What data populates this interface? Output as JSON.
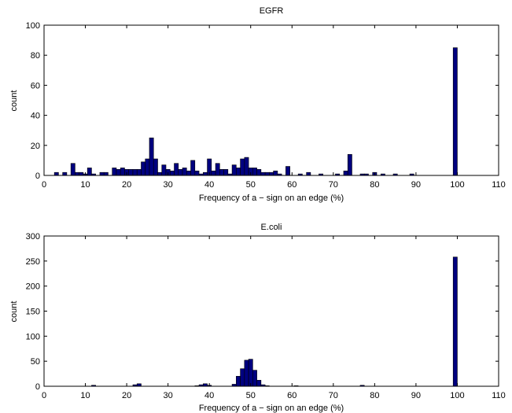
{
  "colors": {
    "bar_fill": "#00007f",
    "bar_edge": "#000000",
    "axes": "#000000",
    "background": "#ffffff"
  },
  "chart_data": [
    {
      "type": "bar",
      "title": "EGFR",
      "xlabel": "Frequency of a − sign on an edge (%)",
      "ylabel": "count",
      "xlim": [
        0,
        110
      ],
      "ylim": [
        0,
        100
      ],
      "xticks": [
        0,
        10,
        20,
        30,
        40,
        50,
        60,
        70,
        80,
        90,
        100,
        110
      ],
      "yticks": [
        0,
        20,
        40,
        60,
        80,
        100
      ],
      "grid": false,
      "bin_width": 1,
      "bins": [
        {
          "x": 3,
          "y": 2
        },
        {
          "x": 5,
          "y": 2
        },
        {
          "x": 7,
          "y": 8
        },
        {
          "x": 8,
          "y": 2
        },
        {
          "x": 9,
          "y": 2
        },
        {
          "x": 10,
          "y": 1
        },
        {
          "x": 11,
          "y": 5
        },
        {
          "x": 12,
          "y": 1
        },
        {
          "x": 14,
          "y": 2
        },
        {
          "x": 15,
          "y": 2
        },
        {
          "x": 17,
          "y": 5
        },
        {
          "x": 18,
          "y": 4
        },
        {
          "x": 19,
          "y": 5
        },
        {
          "x": 20,
          "y": 4
        },
        {
          "x": 21,
          "y": 4
        },
        {
          "x": 22,
          "y": 4
        },
        {
          "x": 23,
          "y": 4
        },
        {
          "x": 24,
          "y": 9
        },
        {
          "x": 25,
          "y": 11
        },
        {
          "x": 26,
          "y": 25
        },
        {
          "x": 27,
          "y": 11
        },
        {
          "x": 28,
          "y": 2
        },
        {
          "x": 29,
          "y": 7
        },
        {
          "x": 30,
          "y": 4
        },
        {
          "x": 31,
          "y": 3
        },
        {
          "x": 32,
          "y": 8
        },
        {
          "x": 33,
          "y": 4
        },
        {
          "x": 34,
          "y": 5
        },
        {
          "x": 35,
          "y": 3
        },
        {
          "x": 36,
          "y": 10
        },
        {
          "x": 37,
          "y": 3
        },
        {
          "x": 38,
          "y": 1
        },
        {
          "x": 39,
          "y": 2
        },
        {
          "x": 40,
          "y": 11
        },
        {
          "x": 41,
          "y": 3
        },
        {
          "x": 42,
          "y": 8
        },
        {
          "x": 43,
          "y": 4
        },
        {
          "x": 44,
          "y": 4
        },
        {
          "x": 45,
          "y": 1
        },
        {
          "x": 46,
          "y": 7
        },
        {
          "x": 47,
          "y": 5
        },
        {
          "x": 48,
          "y": 11
        },
        {
          "x": 49,
          "y": 12
        },
        {
          "x": 50,
          "y": 5
        },
        {
          "x": 51,
          "y": 5
        },
        {
          "x": 52,
          "y": 4
        },
        {
          "x": 53,
          "y": 2
        },
        {
          "x": 54,
          "y": 2
        },
        {
          "x": 55,
          "y": 2
        },
        {
          "x": 56,
          "y": 3
        },
        {
          "x": 57,
          "y": 1
        },
        {
          "x": 59,
          "y": 6
        },
        {
          "x": 62,
          "y": 1
        },
        {
          "x": 64,
          "y": 2
        },
        {
          "x": 67,
          "y": 1
        },
        {
          "x": 71,
          "y": 1
        },
        {
          "x": 73,
          "y": 3
        },
        {
          "x": 74,
          "y": 14
        },
        {
          "x": 77,
          "y": 1
        },
        {
          "x": 78,
          "y": 1
        },
        {
          "x": 80,
          "y": 2
        },
        {
          "x": 82,
          "y": 1
        },
        {
          "x": 85,
          "y": 1
        },
        {
          "x": 89,
          "y": 1
        },
        {
          "x": 99.5,
          "y": 85
        }
      ]
    },
    {
      "type": "bar",
      "title": "E.coli",
      "xlabel": "Frequency of a − sign on an edge (%)",
      "ylabel": "count",
      "xlim": [
        0,
        110
      ],
      "ylim": [
        0,
        300
      ],
      "xticks": [
        0,
        10,
        20,
        30,
        40,
        50,
        60,
        70,
        80,
        90,
        100,
        110
      ],
      "yticks": [
        0,
        50,
        100,
        150,
        200,
        250,
        300
      ],
      "grid": false,
      "bin_width": 1,
      "bins": [
        {
          "x": 12,
          "y": 2
        },
        {
          "x": 22,
          "y": 3
        },
        {
          "x": 23,
          "y": 5
        },
        {
          "x": 37,
          "y": 1
        },
        {
          "x": 38,
          "y": 3
        },
        {
          "x": 39,
          "y": 5
        },
        {
          "x": 40,
          "y": 2
        },
        {
          "x": 46,
          "y": 4
        },
        {
          "x": 47,
          "y": 20
        },
        {
          "x": 48,
          "y": 35
        },
        {
          "x": 49,
          "y": 52
        },
        {
          "x": 50,
          "y": 54
        },
        {
          "x": 51,
          "y": 32
        },
        {
          "x": 52,
          "y": 12
        },
        {
          "x": 53,
          "y": 3
        },
        {
          "x": 54,
          "y": 1
        },
        {
          "x": 61,
          "y": 1
        },
        {
          "x": 77,
          "y": 2
        },
        {
          "x": 99.5,
          "y": 258
        }
      ]
    }
  ]
}
